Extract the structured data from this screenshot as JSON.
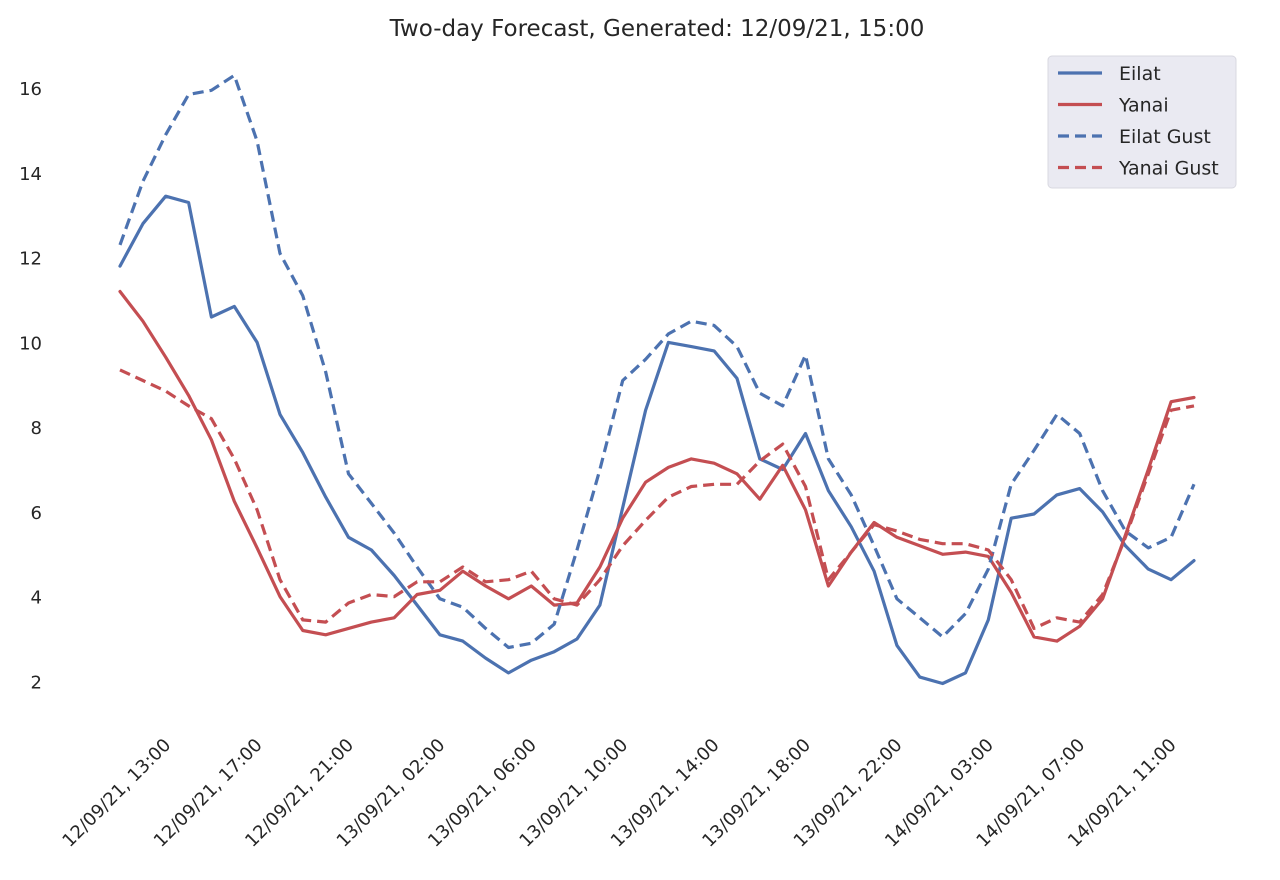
{
  "chart_data": {
    "type": "line",
    "title": "Two-day Forecast, Generated: 12/09/21, 15:00",
    "xlabel": "",
    "ylabel": "",
    "ylim": [
      0.9,
      16.9
    ],
    "yticks": [
      2,
      4,
      6,
      8,
      10,
      12,
      14,
      16
    ],
    "grid": false,
    "legend_position": "top-right",
    "x_count": 48,
    "x_tick_indices": [
      2,
      6,
      10,
      14,
      18,
      22,
      26,
      30,
      34,
      38,
      42,
      46
    ],
    "x_tick_labels": [
      "12/09/21, 13:00",
      "12/09/21, 17:00",
      "12/09/21, 21:00",
      "13/09/21, 02:00",
      "13/09/21, 06:00",
      "13/09/21, 10:00",
      "13/09/21, 14:00",
      "13/09/21, 18:00",
      "13/09/21, 22:00",
      "14/09/21, 03:00",
      "14/09/21, 07:00",
      "14/09/21, 11:00"
    ],
    "series": [
      {
        "name": "Eilat",
        "color": "#4c72b0",
        "dash": false,
        "values": [
          11.8,
          12.8,
          13.45,
          13.3,
          10.6,
          10.85,
          10.0,
          8.3,
          7.4,
          6.35,
          5.4,
          5.1,
          4.5,
          3.8,
          3.1,
          2.95,
          2.55,
          2.2,
          2.5,
          2.7,
          3.0,
          3.8,
          6.1,
          8.4,
          10.0,
          9.9,
          9.8,
          9.15,
          7.25,
          7.0,
          7.85,
          6.5,
          5.65,
          4.6,
          2.85,
          2.1,
          1.95,
          2.2,
          3.45,
          5.85,
          5.95,
          6.4,
          6.55,
          6.0,
          5.2,
          4.65,
          4.4,
          4.85
        ]
      },
      {
        "name": "Yanai",
        "color": "#c44e52",
        "dash": false,
        "values": [
          11.2,
          10.5,
          9.65,
          8.75,
          7.7,
          6.25,
          5.15,
          4.0,
          3.2,
          3.1,
          3.25,
          3.4,
          3.5,
          4.05,
          4.15,
          4.6,
          4.25,
          3.95,
          4.25,
          3.8,
          3.85,
          4.7,
          5.85,
          6.7,
          7.05,
          7.25,
          7.15,
          6.9,
          6.3,
          7.1,
          6.05,
          4.25,
          5.05,
          5.75,
          5.4,
          5.2,
          5.0,
          5.05,
          4.95,
          4.1,
          3.05,
          2.95,
          3.3,
          3.95,
          5.45,
          7.0,
          8.6,
          8.7
        ]
      },
      {
        "name": "Eilat Gust",
        "color": "#4c72b0",
        "dash": true,
        "values": [
          12.3,
          13.8,
          14.9,
          15.85,
          15.95,
          16.3,
          14.75,
          12.1,
          11.1,
          9.3,
          6.9,
          6.2,
          5.5,
          4.7,
          3.95,
          3.75,
          3.25,
          2.8,
          2.9,
          3.35,
          5.1,
          7.0,
          9.1,
          9.6,
          10.2,
          10.5,
          10.4,
          9.9,
          8.8,
          8.5,
          9.7,
          7.25,
          6.4,
          5.2,
          3.95,
          3.5,
          3.05,
          3.6,
          4.65,
          6.65,
          7.45,
          8.3,
          7.85,
          6.5,
          5.55,
          5.15,
          5.4,
          6.65
        ]
      },
      {
        "name": "Yanai Gust",
        "color": "#c44e52",
        "dash": true,
        "values": [
          9.35,
          9.1,
          8.85,
          8.5,
          8.2,
          7.25,
          6.05,
          4.4,
          3.45,
          3.4,
          3.85,
          4.05,
          4.0,
          4.35,
          4.35,
          4.7,
          4.35,
          4.4,
          4.6,
          3.95,
          3.8,
          4.4,
          5.2,
          5.8,
          6.35,
          6.6,
          6.65,
          6.65,
          7.2,
          7.6,
          6.6,
          4.4,
          5.05,
          5.7,
          5.55,
          5.35,
          5.25,
          5.25,
          5.1,
          4.4,
          3.25,
          3.5,
          3.4,
          4.05,
          5.4,
          6.9,
          8.4,
          8.5
        ]
      }
    ]
  }
}
